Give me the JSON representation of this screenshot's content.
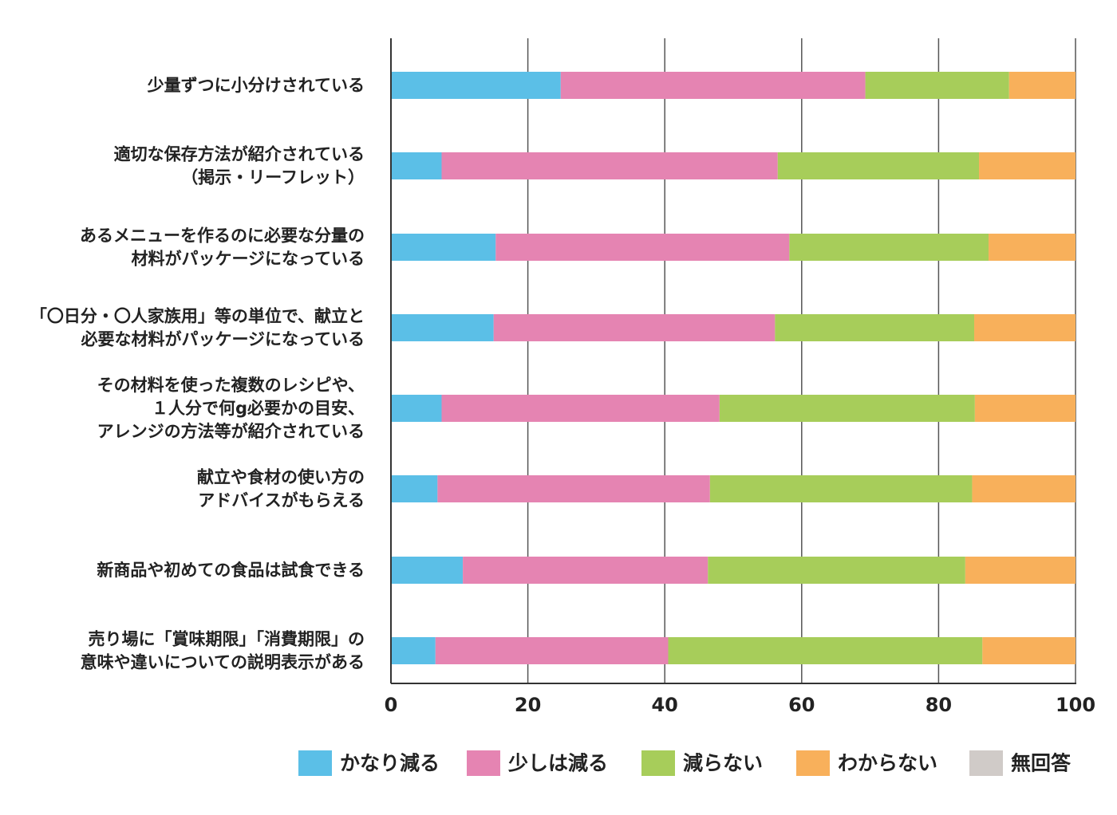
{
  "chart_data": {
    "type": "bar",
    "orientation": "horizontal",
    "stacked": true,
    "categories": [
      [
        "少量ずつに小分けされている"
      ],
      [
        "適切な保存方法が紹介されている",
        "（掲示・リーフレット）"
      ],
      [
        "あるメニューを作るのに必要な分量の",
        "材料がパッケージになっている"
      ],
      [
        "「〇日分・〇人家族用」等の単位で、献立と",
        "必要な材料がパッケージになっている"
      ],
      [
        "その材料を使った複数のレシピや、",
        "１人分で何g必要かの目安、",
        "アレンジの方法等が紹介されている"
      ],
      [
        "献立や食材の使い方の",
        "アドバイスがもらえる"
      ],
      [
        "新商品や初めての食品は試食できる"
      ],
      [
        "売り場に「賞味期限」「消費期限」の",
        "意味や違いについての説明表示がある"
      ]
    ],
    "series": [
      {
        "name": "かなり減る",
        "color": "#5bbfe7",
        "values": [
          24.8,
          7.4,
          15.3,
          15.0,
          7.4,
          6.8,
          10.5,
          6.5
        ]
      },
      {
        "name": "少しは減る",
        "color": "#e584b2",
        "values": [
          44.5,
          49.1,
          42.9,
          41.1,
          40.6,
          39.8,
          35.8,
          34.0
        ]
      },
      {
        "name": "減らない",
        "color": "#a7cd5a",
        "values": [
          21.0,
          29.4,
          29.1,
          29.1,
          37.3,
          38.3,
          37.6,
          45.9
        ]
      },
      {
        "name": "わからない",
        "color": "#f8b05b",
        "values": [
          9.7,
          14.1,
          12.7,
          14.8,
          14.7,
          15.1,
          16.1,
          13.6
        ]
      },
      {
        "name": "無回答",
        "color": "#d0cbc8",
        "values": [
          0,
          0,
          0,
          0,
          0,
          0,
          0,
          0
        ]
      }
    ],
    "xlim": [
      0,
      100
    ],
    "xticks": [
      "0",
      "20",
      "40",
      "60",
      "80",
      "100"
    ],
    "grid": true,
    "legend_position": "bottom",
    "title": "",
    "xlabel": "",
    "ylabel": ""
  }
}
